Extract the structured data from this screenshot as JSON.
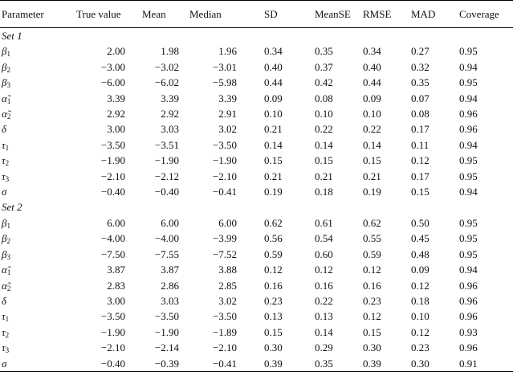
{
  "headers": [
    "Parameter",
    "True value",
    "Mean",
    "Median",
    "SD",
    "MeanSE",
    "RMSE",
    "MAD",
    "Coverage"
  ],
  "sets": [
    {
      "label": "Set 1",
      "rows": [
        {
          "sym": "β",
          "sub": "1",
          "vals": [
            "2.00",
            "1.98",
            "1.96",
            "0.34",
            "0.35",
            "0.34",
            "0.27",
            "0.95"
          ]
        },
        {
          "sym": "β",
          "sub": "2",
          "vals": [
            "−3.00",
            "−3.02",
            "−3.01",
            "0.40",
            "0.37",
            "0.40",
            "0.32",
            "0.94"
          ]
        },
        {
          "sym": "β",
          "sub": "3",
          "vals": [
            "−6.00",
            "−6.02",
            "−5.98",
            "0.44",
            "0.42",
            "0.44",
            "0.35",
            "0.95"
          ]
        },
        {
          "sym": "α̃",
          "sub": "1",
          "vals": [
            "3.39",
            "3.39",
            "3.39",
            "0.09",
            "0.08",
            "0.09",
            "0.07",
            "0.94"
          ]
        },
        {
          "sym": "α̃",
          "sub": "2",
          "vals": [
            "2.92",
            "2.92",
            "2.91",
            "0.10",
            "0.10",
            "0.10",
            "0.08",
            "0.96"
          ]
        },
        {
          "sym": "δ",
          "sub": "",
          "vals": [
            "3.00",
            "3.03",
            "3.02",
            "0.21",
            "0.22",
            "0.22",
            "0.17",
            "0.96"
          ]
        },
        {
          "sym": "τ",
          "sub": "1",
          "vals": [
            "−3.50",
            "−3.51",
            "−3.50",
            "0.14",
            "0.14",
            "0.14",
            "0.11",
            "0.94"
          ]
        },
        {
          "sym": "τ",
          "sub": "2",
          "vals": [
            "−1.90",
            "−1.90",
            "−1.90",
            "0.15",
            "0.15",
            "0.15",
            "0.12",
            "0.95"
          ]
        },
        {
          "sym": "τ",
          "sub": "3",
          "vals": [
            "−2.10",
            "−2.12",
            "−2.10",
            "0.21",
            "0.21",
            "0.21",
            "0.17",
            "0.95"
          ]
        },
        {
          "sym": "σ",
          "sub": "",
          "vals": [
            "−0.40",
            "−0.40",
            "−0.41",
            "0.19",
            "0.18",
            "0.19",
            "0.15",
            "0.94"
          ]
        }
      ]
    },
    {
      "label": "Set 2",
      "rows": [
        {
          "sym": "β",
          "sub": "1",
          "vals": [
            "6.00",
            "6.00",
            "6.00",
            "0.62",
            "0.61",
            "0.62",
            "0.50",
            "0.95"
          ]
        },
        {
          "sym": "β",
          "sub": "2",
          "vals": [
            "−4.00",
            "−4.00",
            "−3.99",
            "0.56",
            "0.54",
            "0.55",
            "0.45",
            "0.95"
          ]
        },
        {
          "sym": "β",
          "sub": "3",
          "vals": [
            "−7.50",
            "−7.55",
            "−7.52",
            "0.59",
            "0.60",
            "0.59",
            "0.48",
            "0.95"
          ]
        },
        {
          "sym": "α̃",
          "sub": "1",
          "vals": [
            "3.87",
            "3.87",
            "3.88",
            "0.12",
            "0.12",
            "0.12",
            "0.09",
            "0.94"
          ]
        },
        {
          "sym": "α̃",
          "sub": "2",
          "vals": [
            "2.83",
            "2.86",
            "2.85",
            "0.16",
            "0.16",
            "0.16",
            "0.12",
            "0.96"
          ]
        },
        {
          "sym": "δ",
          "sub": "",
          "vals": [
            "3.00",
            "3.03",
            "3.02",
            "0.23",
            "0.22",
            "0.23",
            "0.18",
            "0.96"
          ]
        },
        {
          "sym": "τ",
          "sub": "1",
          "vals": [
            "−3.50",
            "−3.50",
            "−3.50",
            "0.13",
            "0.13",
            "0.12",
            "0.10",
            "0.96"
          ]
        },
        {
          "sym": "τ",
          "sub": "2",
          "vals": [
            "−1.90",
            "−1.90",
            "−1.89",
            "0.15",
            "0.14",
            "0.15",
            "0.12",
            "0.93"
          ]
        },
        {
          "sym": "τ",
          "sub": "3",
          "vals": [
            "−2.10",
            "−2.14",
            "−2.10",
            "0.30",
            "0.29",
            "0.30",
            "0.23",
            "0.96"
          ]
        },
        {
          "sym": "σ",
          "sub": "",
          "vals": [
            "−0.40",
            "−0.39",
            "−0.41",
            "0.39",
            "0.35",
            "0.39",
            "0.30",
            "0.91"
          ]
        }
      ]
    }
  ]
}
